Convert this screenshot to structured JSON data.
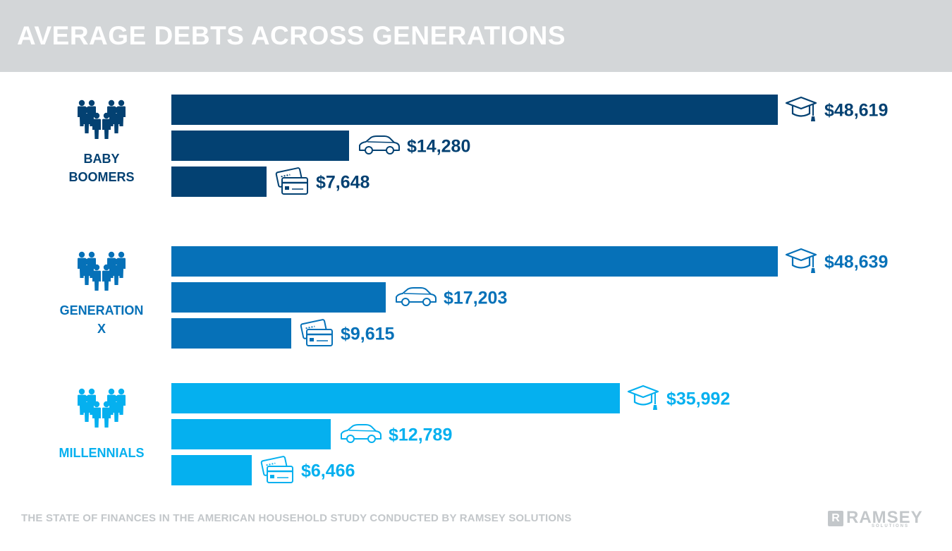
{
  "header": {
    "title": "AVERAGE DEBTS ACROSS GENERATIONS"
  },
  "footer": {
    "source": "THE STATE OF FINANCES IN THE AMERICAN HOUSEHOLD STUDY CONDUCTED BY RAMSEY SOLUTIONS"
  },
  "logo": {
    "text": "RAMSEY",
    "sub": "SOLUTIONS",
    "mark": "R"
  },
  "chart_data": {
    "type": "bar",
    "orientation": "horizontal",
    "title": "AVERAGE DEBTS ACROSS GENERATIONS",
    "groups": [
      {
        "name": "BABY BOOMERS",
        "color": "#034172",
        "bars": [
          {
            "category": "student loans",
            "icon": "graduation-cap-icon",
            "value": 48619,
            "label": "$48,619"
          },
          {
            "category": "car loans",
            "icon": "car-icon",
            "value": 14280,
            "label": "$14,280"
          },
          {
            "category": "credit cards",
            "icon": "credit-card-icon",
            "value": 7648,
            "label": "$7,648"
          }
        ]
      },
      {
        "name": "GENERATION X",
        "color": "#0671b8",
        "bars": [
          {
            "category": "student loans",
            "icon": "graduation-cap-icon",
            "value": 48639,
            "label": "$48,639"
          },
          {
            "category": "car loans",
            "icon": "car-icon",
            "value": 17203,
            "label": "$17,203"
          },
          {
            "category": "credit cards",
            "icon": "credit-card-icon",
            "value": 9615,
            "label": "$9,615"
          }
        ]
      },
      {
        "name": "MILLENNIALS",
        "color": "#05b0ef",
        "bars": [
          {
            "category": "student loans",
            "icon": "graduation-cap-icon",
            "value": 35992,
            "label": "$35,992"
          },
          {
            "category": "car loans",
            "icon": "car-icon",
            "value": 12789,
            "label": "$12,789"
          },
          {
            "category": "credit cards",
            "icon": "credit-card-icon",
            "value": 6466,
            "label": "$6,466"
          }
        ]
      }
    ],
    "xlim": [
      0,
      48639
    ],
    "grid": false,
    "legend": "none"
  }
}
